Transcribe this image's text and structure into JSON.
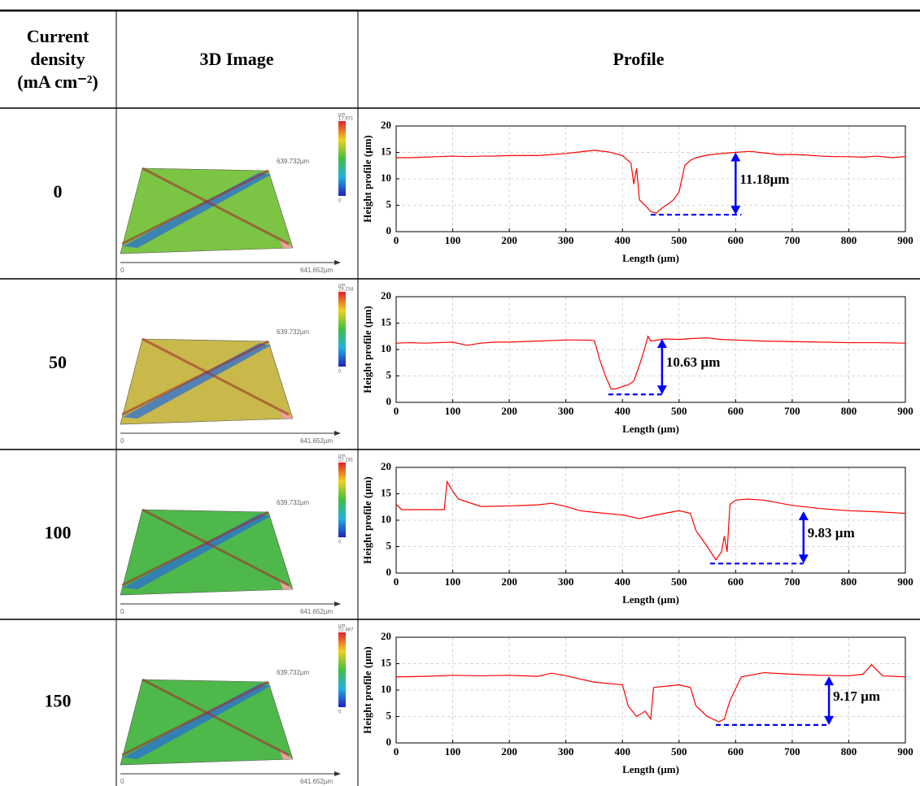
{
  "table": {
    "header": [
      [
        "Current",
        "density",
        "(mA cm⁻²)"
      ],
      "3D Image",
      "Profile"
    ],
    "rows": [
      {
        "density": "0",
        "image": {
          "unit": "µm",
          "max": "17.971",
          "min": "0",
          "y_extent": "639.732µm",
          "x_extent": "641.652µm",
          "origin": "0",
          "surface_color": "#7cc443"
        },
        "profile": {
          "type": "line",
          "color": "#ff0000",
          "xlim": [
            0,
            900
          ],
          "ylim": [
            0,
            20
          ],
          "xticks": [
            0,
            100,
            200,
            300,
            400,
            500,
            600,
            700,
            800,
            900
          ],
          "yticks": [
            0,
            5,
            10,
            15,
            20
          ],
          "grid": true,
          "xlabel": "Length (μm)",
          "ylabel": "Height profile (μm)",
          "x": [
            0,
            25,
            50,
            75,
            100,
            125,
            150,
            175,
            200,
            225,
            250,
            275,
            300,
            325,
            350,
            375,
            400,
            415,
            420,
            425,
            430,
            440,
            450,
            460,
            470,
            480,
            490,
            500,
            505,
            510,
            520,
            530,
            550,
            575,
            600,
            625,
            650,
            675,
            700,
            725,
            750,
            775,
            800,
            825,
            850,
            875,
            900
          ],
          "values": [
            14,
            14,
            14.1,
            14.2,
            14.3,
            14.2,
            14.3,
            14.3,
            14.4,
            14.4,
            14.4,
            14.6,
            14.8,
            15.1,
            15.4,
            15.1,
            14.4,
            13,
            9,
            12,
            6,
            5,
            3.8,
            3.5,
            4.5,
            5.2,
            6,
            7.5,
            10,
            12.5,
            13.5,
            14,
            14.5,
            14.8,
            15,
            15.2,
            14.9,
            14.6,
            14.6,
            14.5,
            14.3,
            14.2,
            14.2,
            14.1,
            14.3,
            14,
            14.2
          ],
          "annotation": {
            "label": "11.18μm",
            "x": 600,
            "y": [
              3.2,
              15
            ],
            "xline": [
              450,
              610
            ],
            "color": "#0000ff"
          }
        }
      },
      {
        "density": "50",
        "image": {
          "unit": "µm",
          "max": "29.234",
          "min": "0",
          "y_extent": "639.732µm",
          "x_extent": "641.652µm",
          "origin": "0",
          "surface_color": "#c9b84a"
        },
        "profile": {
          "type": "line",
          "color": "#ff0000",
          "xlim": [
            0,
            900
          ],
          "ylim": [
            0,
            20
          ],
          "xticks": [
            0,
            100,
            200,
            300,
            400,
            500,
            600,
            700,
            800,
            900
          ],
          "yticks": [
            0,
            5,
            10,
            15,
            20
          ],
          "grid": true,
          "xlabel": "Length (μm)",
          "ylabel": "Height profile (μm)",
          "x": [
            0,
            25,
            50,
            75,
            100,
            125,
            150,
            175,
            200,
            225,
            250,
            275,
            300,
            325,
            350,
            355,
            360,
            370,
            380,
            390,
            400,
            410,
            420,
            430,
            440,
            445,
            450,
            475,
            500,
            525,
            550,
            575,
            600,
            650,
            700,
            750,
            800,
            850,
            900
          ],
          "values": [
            11.2,
            11.3,
            11.2,
            11.3,
            11.4,
            10.8,
            11.2,
            11.4,
            11.4,
            11.5,
            11.6,
            11.7,
            11.8,
            11.8,
            11.7,
            10,
            8,
            5,
            2.5,
            2.6,
            3,
            3.3,
            4,
            7,
            10.5,
            12.5,
            11.6,
            12,
            11.9,
            12.1,
            12.2,
            11.9,
            11.8,
            11.6,
            11.5,
            11.4,
            11.3,
            11.3,
            11.2
          ],
          "annotation": {
            "label": "10.63 µm",
            "x": 470,
            "y": [
              1.5,
              12
            ],
            "xline": [
              375,
              470
            ],
            "color": "#0000ff"
          }
        }
      },
      {
        "density": "100",
        "image": {
          "unit": "µm",
          "max": "22.191",
          "min": "0",
          "y_extent": "639.732µm",
          "x_extent": "641.652µm",
          "origin": "0",
          "surface_color": "#4fb84a"
        },
        "profile": {
          "type": "line",
          "color": "#ff0000",
          "xlim": [
            0,
            900
          ],
          "ylim": [
            0,
            20
          ],
          "xticks": [
            0,
            100,
            200,
            300,
            400,
            500,
            600,
            700,
            800,
            900
          ],
          "yticks": [
            0,
            5,
            10,
            15,
            20
          ],
          "grid": true,
          "xlabel": "Length (μm)",
          "ylabel": "Height profile (μm)",
          "x": [
            0,
            10,
            50,
            85,
            90,
            100,
            110,
            150,
            200,
            250,
            275,
            300,
            325,
            350,
            400,
            430,
            460,
            500,
            520,
            530,
            550,
            565,
            575,
            580,
            585,
            590,
            600,
            620,
            650,
            700,
            750,
            800,
            850,
            900
          ],
          "values": [
            13,
            12,
            12,
            12,
            17.3,
            15.5,
            14,
            12.6,
            12.7,
            12.9,
            13.2,
            12.6,
            11.8,
            11.5,
            11,
            10.3,
            11,
            11.8,
            11.3,
            8,
            5,
            2.5,
            4,
            7,
            4,
            13,
            13.8,
            14,
            13.8,
            12.8,
            12.2,
            11.8,
            11.6,
            11.3
          ],
          "annotation": {
            "label": "9.83 µm",
            "x": 720,
            "y": [
              1.8,
              11.7
            ],
            "xline": [
              555,
              720
            ],
            "color": "#0000ff"
          }
        }
      },
      {
        "density": "150",
        "image": {
          "unit": "µm",
          "max": "22.867",
          "min": "0",
          "y_extent": "639.732µm",
          "x_extent": "641.652µm",
          "origin": "0",
          "surface_color": "#4fb84a"
        },
        "profile": {
          "type": "line",
          "color": "#ff0000",
          "xlim": [
            0,
            900
          ],
          "ylim": [
            0,
            20
          ],
          "xticks": [
            0,
            100,
            200,
            300,
            400,
            500,
            600,
            700,
            800,
            900
          ],
          "yticks": [
            0,
            5,
            10,
            15,
            20
          ],
          "grid": true,
          "xlabel": "Length (μm)",
          "ylabel": "Height profile (μm)",
          "x": [
            0,
            50,
            100,
            150,
            200,
            250,
            275,
            300,
            350,
            400,
            410,
            425,
            440,
            450,
            455,
            500,
            520,
            530,
            550,
            570,
            580,
            590,
            610,
            650,
            700,
            750,
            800,
            825,
            840,
            860,
            900
          ],
          "values": [
            12.5,
            12.6,
            12.8,
            12.7,
            12.8,
            12.6,
            13.2,
            12.7,
            11.5,
            11,
            7,
            5,
            6,
            4.5,
            10.5,
            11,
            10.5,
            7,
            5,
            4,
            4.5,
            8,
            12.5,
            13.3,
            13,
            12.8,
            12.7,
            13,
            14.8,
            12.7,
            12.5
          ],
          "annotation": {
            "label": "9.17 µm",
            "x": 765,
            "y": [
              3.4,
              12.6
            ],
            "xline": [
              565,
              765
            ],
            "color": "#0000ff"
          }
        }
      }
    ]
  }
}
